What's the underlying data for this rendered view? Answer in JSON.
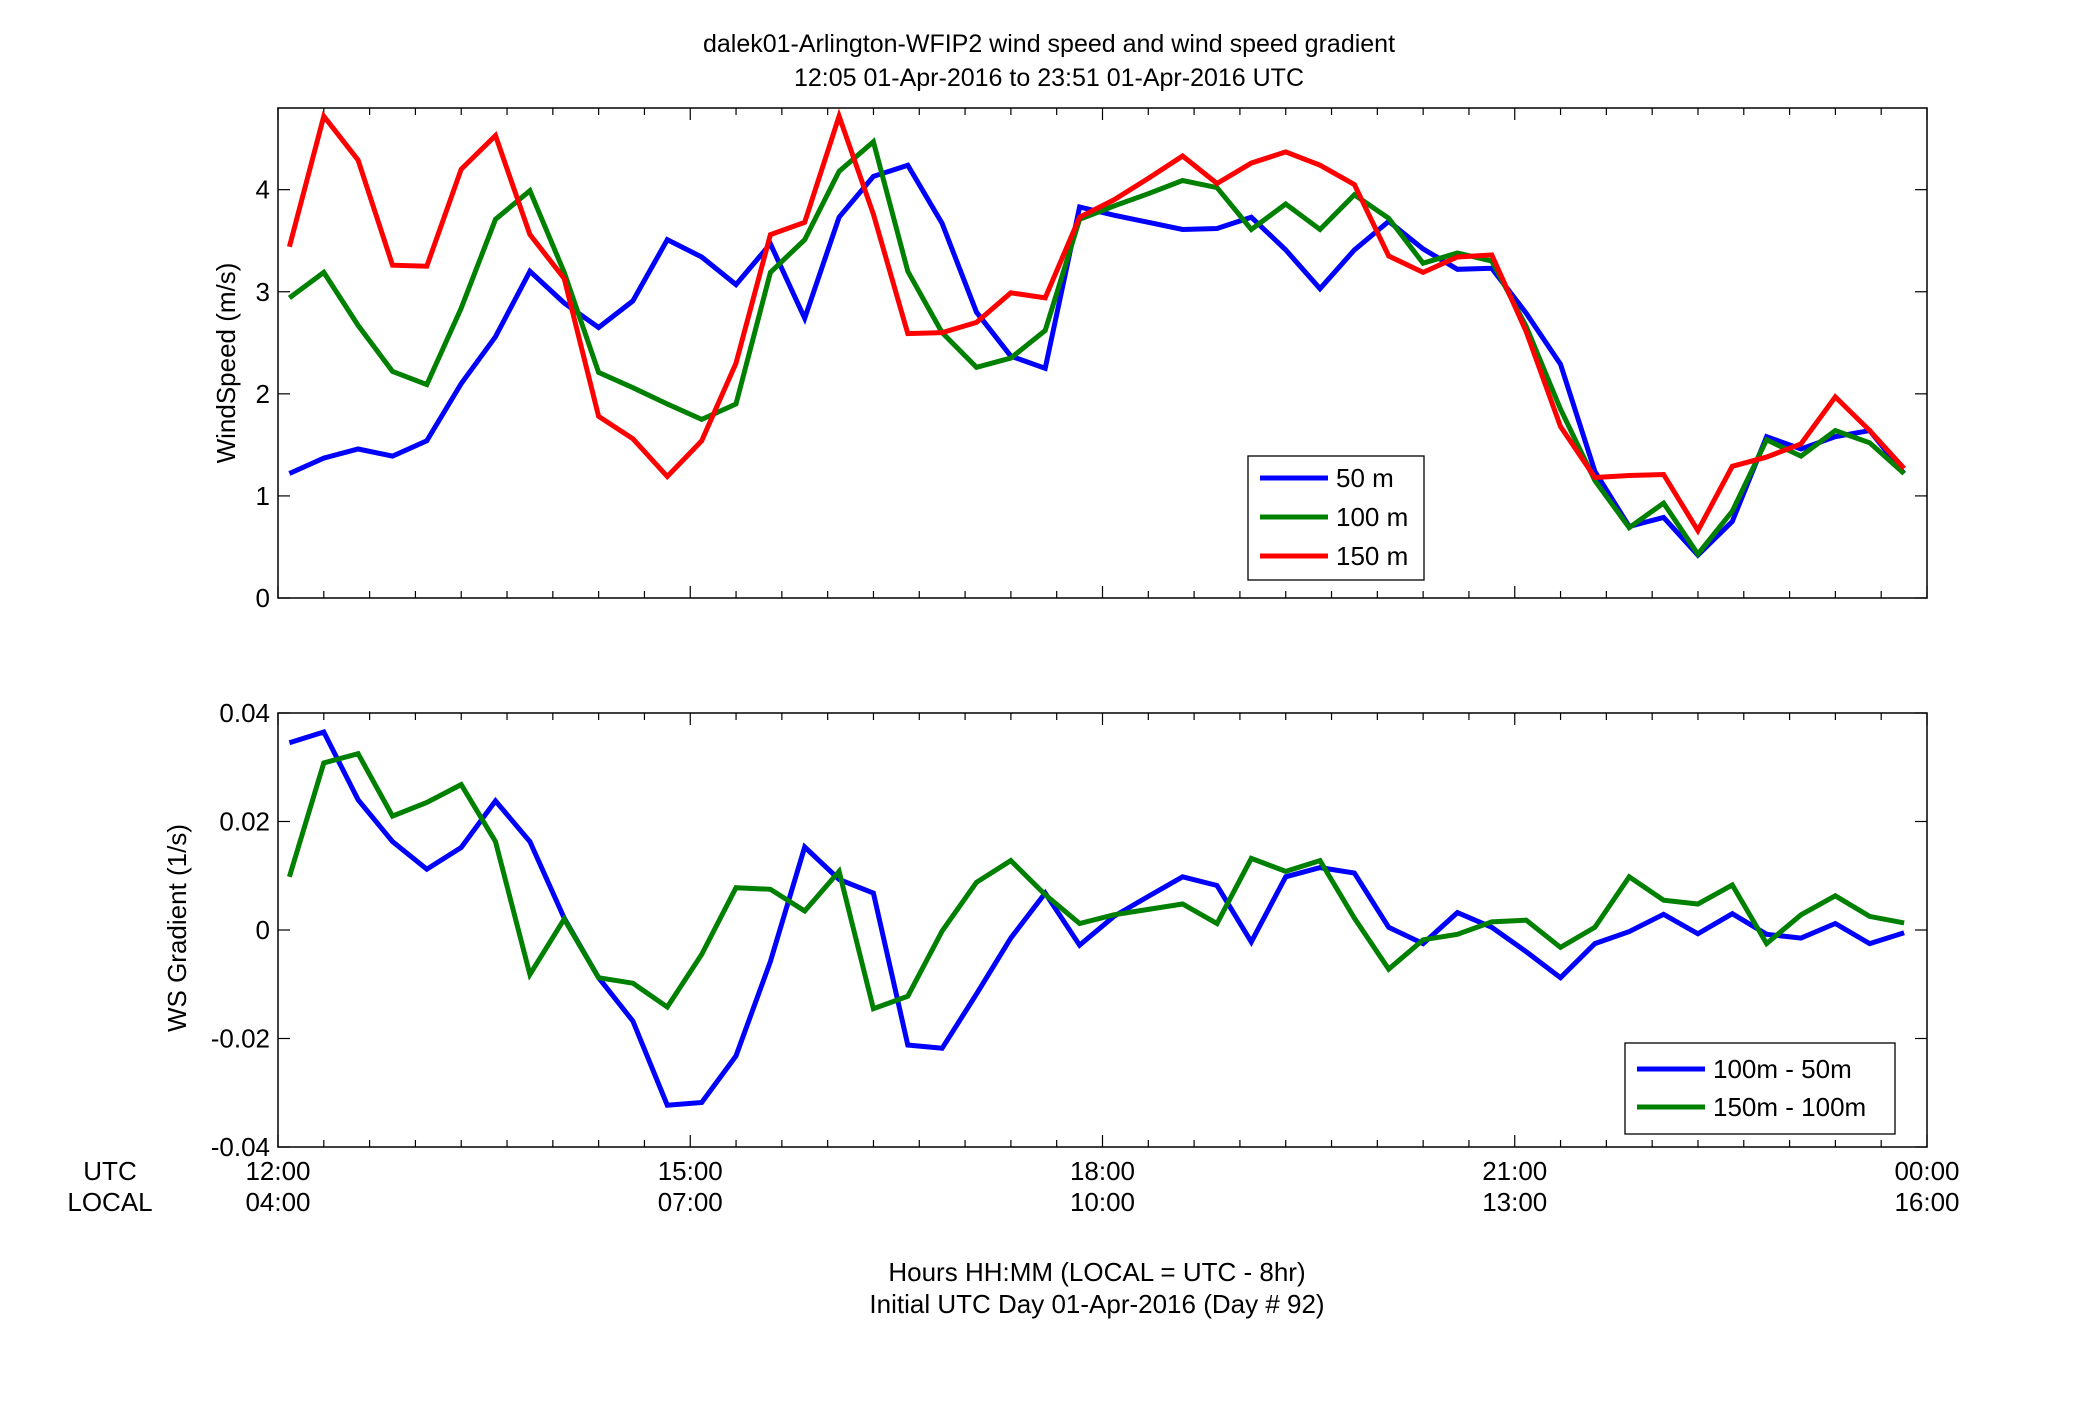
{
  "chart_data": [
    {
      "type": "line",
      "title": "dalek01-Arlington-WFIP2  wind speed and wind speed gradient",
      "subtitle": "12:05 01-Apr-2016 to 23:51 01-Apr-2016  UTC",
      "ylabel": "WindSpeed (m/s)",
      "ylim": [
        0,
        4.8
      ],
      "yticks": [
        "0",
        "1",
        "2",
        "3",
        "4"
      ],
      "legend_position": "lower-right",
      "series": [
        {
          "name": "50 m",
          "color": "#0000ff",
          "x": [
            12.083,
            12.333,
            12.583,
            12.833,
            13.083,
            13.333,
            13.583,
            13.833,
            14.083,
            14.333,
            14.583,
            14.833,
            15.083,
            15.333,
            15.583,
            15.833,
            16.083,
            16.333,
            16.583,
            16.833,
            17.083,
            17.333,
            17.583,
            17.833,
            18.083,
            18.333,
            18.583,
            18.833,
            19.083,
            19.333,
            19.583,
            19.833,
            20.083,
            20.333,
            20.583,
            20.833,
            21.083,
            21.333,
            21.583,
            21.833,
            22.083,
            22.333,
            22.583,
            22.833,
            23.083,
            23.333,
            23.583,
            23.833
          ],
          "y": [
            1.22,
            1.37,
            1.46,
            1.39,
            1.54,
            2.1,
            2.56,
            3.2,
            2.89,
            2.65,
            2.91,
            3.51,
            3.34,
            3.07,
            3.47,
            2.74,
            3.73,
            4.13,
            4.24,
            3.67,
            2.8,
            2.37,
            2.25,
            3.83,
            3.75,
            3.68,
            3.61,
            3.62,
            3.73,
            3.41,
            3.03,
            3.41,
            3.69,
            3.42,
            3.22,
            3.23,
            2.79,
            2.29,
            1.24,
            0.7,
            0.79,
            0.42,
            0.75,
            1.58,
            1.46,
            1.58,
            1.64,
            1.22
          ]
        },
        {
          "name": "100 m",
          "color": "#008000",
          "x": [
            12.083,
            12.333,
            12.583,
            12.833,
            13.083,
            13.333,
            13.583,
            13.833,
            14.083,
            14.333,
            14.583,
            14.833,
            15.083,
            15.333,
            15.583,
            15.833,
            16.083,
            16.333,
            16.583,
            16.833,
            17.083,
            17.333,
            17.583,
            17.833,
            18.083,
            18.333,
            18.583,
            18.833,
            19.083,
            19.333,
            19.583,
            19.833,
            20.083,
            20.333,
            20.583,
            20.833,
            21.083,
            21.333,
            21.583,
            21.833,
            22.083,
            22.333,
            22.583,
            22.833,
            23.083,
            23.333,
            23.583,
            23.833
          ],
          "y": [
            2.94,
            3.19,
            2.67,
            2.22,
            2.09,
            2.84,
            3.71,
            3.99,
            3.19,
            2.21,
            2.06,
            1.9,
            1.75,
            1.9,
            3.19,
            3.51,
            4.18,
            4.47,
            3.2,
            2.6,
            2.26,
            2.35,
            2.62,
            3.71,
            3.84,
            3.96,
            4.09,
            4.02,
            3.61,
            3.86,
            3.61,
            3.95,
            3.72,
            3.28,
            3.38,
            3.3,
            2.66,
            1.85,
            1.15,
            0.69,
            0.93,
            0.43,
            0.85,
            1.55,
            1.39,
            1.64,
            1.52,
            1.22
          ]
        },
        {
          "name": "150 m",
          "color": "#ff0000",
          "x": [
            12.083,
            12.333,
            12.583,
            12.833,
            13.083,
            13.333,
            13.583,
            13.833,
            14.083,
            14.333,
            14.583,
            14.833,
            15.083,
            15.333,
            15.583,
            15.833,
            16.083,
            16.333,
            16.583,
            16.833,
            17.083,
            17.333,
            17.583,
            17.833,
            18.083,
            18.333,
            18.583,
            18.833,
            19.083,
            19.333,
            19.583,
            19.833,
            20.083,
            20.333,
            20.583,
            20.833,
            21.083,
            21.333,
            21.583,
            21.833,
            22.083,
            22.333,
            22.583,
            22.833,
            23.083,
            23.333,
            23.583,
            23.833
          ],
          "y": [
            3.44,
            4.72,
            4.29,
            3.26,
            3.25,
            4.2,
            4.53,
            3.56,
            3.13,
            1.78,
            1.56,
            1.19,
            1.54,
            2.3,
            3.56,
            3.68,
            4.72,
            3.76,
            2.59,
            2.6,
            2.7,
            2.99,
            2.94,
            3.73,
            3.9,
            4.11,
            4.33,
            4.06,
            4.26,
            4.37,
            4.24,
            4.05,
            3.35,
            3.19,
            3.34,
            3.36,
            2.61,
            1.68,
            1.18,
            1.2,
            1.21,
            0.66,
            1.29,
            1.38,
            1.51,
            1.97,
            1.64,
            1.27
          ]
        }
      ]
    },
    {
      "type": "line",
      "ylabel": "WS Gradient (1/s)",
      "ylim": [
        -0.04,
        0.04
      ],
      "yticks": [
        "-0.04",
        "-0.02",
        "0",
        "0.02",
        "0.04"
      ],
      "legend_position": "lower-right",
      "xlabel": "Hours HH:MM  (LOCAL = UTC - 8hr)",
      "xlabel2": "Initial UTC Day 01-Apr-2016 (Day # 92)",
      "xrow_labels": [
        "UTC",
        "LOCAL"
      ],
      "xticks_utc": [
        "12:00",
        "15:00",
        "18:00",
        "21:00",
        "00:00"
      ],
      "xticks_local": [
        "04:00",
        "07:00",
        "10:00",
        "13:00",
        "16:00"
      ],
      "xlim": [
        12,
        24
      ],
      "series": [
        {
          "name": "100m - 50m",
          "color": "#0000ff",
          "x": [
            12.083,
            12.333,
            12.583,
            12.833,
            13.083,
            13.333,
            13.583,
            13.833,
            14.083,
            14.333,
            14.583,
            14.833,
            15.083,
            15.333,
            15.583,
            15.833,
            16.083,
            16.333,
            16.583,
            16.833,
            17.083,
            17.333,
            17.583,
            17.833,
            18.083,
            18.333,
            18.583,
            18.833,
            19.083,
            19.333,
            19.583,
            19.833,
            20.083,
            20.333,
            20.583,
            20.833,
            21.083,
            21.333,
            21.583,
            21.833,
            22.083,
            22.333,
            22.583,
            22.833,
            23.083,
            23.333,
            23.583,
            23.833
          ],
          "y": [
            0.0345,
            0.0365,
            0.024,
            0.0163,
            0.0112,
            0.0152,
            0.0238,
            0.0163,
            0.0022,
            -0.0088,
            -0.0168,
            -0.0323,
            -0.0318,
            -0.0232,
            -0.0058,
            0.0153,
            0.0093,
            0.0068,
            -0.0212,
            -0.0218,
            -0.0118,
            -0.0015,
            0.0068,
            -0.0028,
            0.0025,
            0.0062,
            0.0098,
            0.0082,
            -0.0022,
            0.0098,
            0.0115,
            0.0105,
            0.0005,
            -0.0025,
            0.0032,
            0.0005,
            -0.004,
            -0.0088,
            -0.0025,
            -0.0003,
            0.0029,
            -0.0007,
            0.003,
            -0.0008,
            -0.0015,
            0.0012,
            -0.0025,
            -0.0005
          ]
        },
        {
          "name": "150m - 100m",
          "color": "#008000",
          "x": [
            12.083,
            12.333,
            12.583,
            12.833,
            13.083,
            13.333,
            13.583,
            13.833,
            14.083,
            14.333,
            14.583,
            14.833,
            15.083,
            15.333,
            15.583,
            15.833,
            16.083,
            16.333,
            16.583,
            16.833,
            17.083,
            17.333,
            17.583,
            17.833,
            18.083,
            18.333,
            18.583,
            18.833,
            19.083,
            19.333,
            19.583,
            19.833,
            20.083,
            20.333,
            20.583,
            20.833,
            21.083,
            21.333,
            21.583,
            21.833,
            22.083,
            22.333,
            22.583,
            22.833,
            23.083,
            23.333,
            23.583,
            23.833
          ],
          "y": [
            0.0098,
            0.0308,
            0.0325,
            0.021,
            0.0235,
            0.0268,
            0.0163,
            -0.0082,
            0.002,
            -0.0088,
            -0.0098,
            -0.0142,
            -0.0045,
            0.0078,
            0.0075,
            0.0035,
            0.0108,
            -0.0145,
            -0.0122,
            -0.0002,
            0.0088,
            0.0128,
            0.0065,
            0.0012,
            0.0028,
            0.0038,
            0.0048,
            0.0012,
            0.0132,
            0.0108,
            0.0128,
            0.0022,
            -0.0072,
            -0.0018,
            -0.0008,
            0.0015,
            0.0018,
            -0.0032,
            0.0005,
            0.0098,
            0.0055,
            0.0048,
            0.0083,
            -0.0025,
            0.0028,
            0.0063,
            0.0025,
            0.0013
          ]
        }
      ]
    }
  ]
}
